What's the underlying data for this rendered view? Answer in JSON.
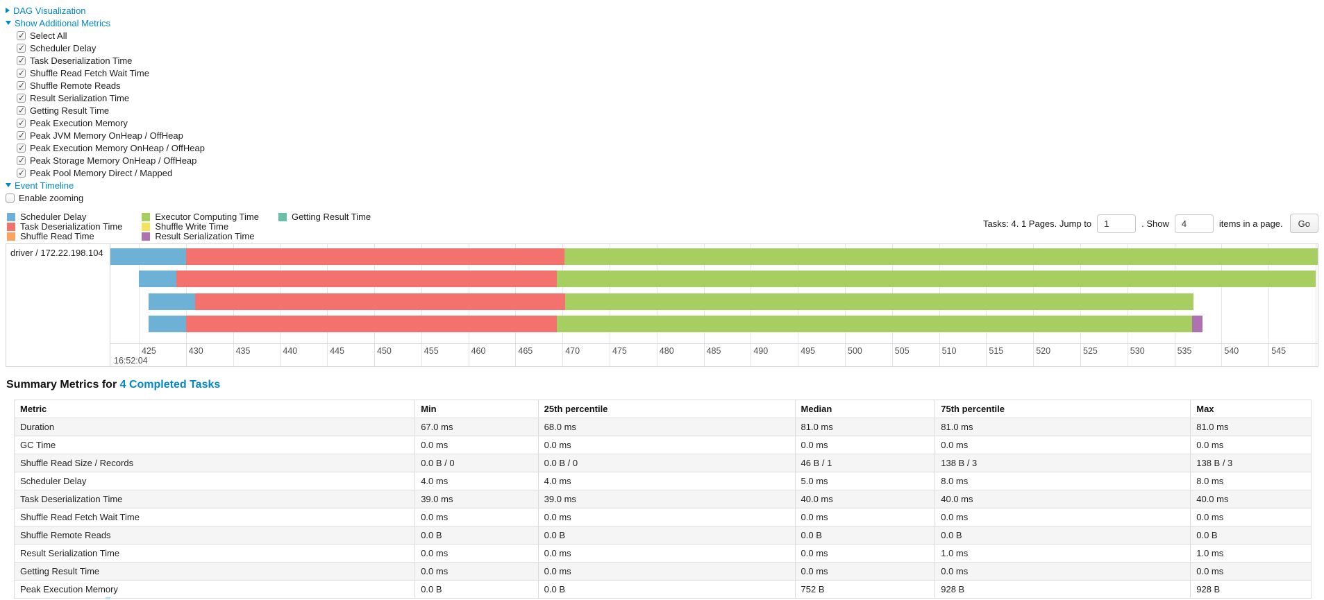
{
  "controls": {
    "dag": {
      "label": "DAG Visualization"
    },
    "metrics_toggle": {
      "label": "Show Additional Metrics"
    },
    "metric_checkboxes": [
      {
        "label": "Select All",
        "checked": true
      },
      {
        "label": "Scheduler Delay",
        "checked": true
      },
      {
        "label": "Task Deserialization Time",
        "checked": true
      },
      {
        "label": "Shuffle Read Fetch Wait Time",
        "checked": true
      },
      {
        "label": "Shuffle Remote Reads",
        "checked": true
      },
      {
        "label": "Result Serialization Time",
        "checked": true
      },
      {
        "label": "Getting Result Time",
        "checked": true
      },
      {
        "label": "Peak Execution Memory",
        "checked": true
      },
      {
        "label": "Peak JVM Memory OnHeap / OffHeap",
        "checked": true
      },
      {
        "label": "Peak Execution Memory OnHeap / OffHeap",
        "checked": true
      },
      {
        "label": "Peak Storage Memory OnHeap / OffHeap",
        "checked": true
      },
      {
        "label": "Peak Pool Memory Direct / Mapped",
        "checked": true
      }
    ],
    "event_timeline": {
      "label": "Event Timeline"
    },
    "enable_zooming": {
      "label": "Enable zooming",
      "checked": false
    }
  },
  "legend": {
    "columns": [
      [
        {
          "name": "Scheduler Delay",
          "color": "#6EB1D6"
        },
        {
          "name": "Task Deserialization Time",
          "color": "#F4726E"
        },
        {
          "name": "Shuffle Read Time",
          "color": "#FBA45D"
        }
      ],
      [
        {
          "name": "Executor Computing Time",
          "color": "#A6CE61"
        },
        {
          "name": "Shuffle Write Time",
          "color": "#F2E45C"
        },
        {
          "name": "Result Serialization Time",
          "color": "#AF72B0"
        }
      ],
      [
        {
          "name": "Getting Result Time",
          "color": "#66C2A5"
        }
      ]
    ]
  },
  "pagination": {
    "summary": "Tasks: 4. 1 Pages. Jump to",
    "jump_value": "1",
    "show_label": ". Show",
    "show_value": "4",
    "items_label": "items in a page.",
    "go_label": "Go"
  },
  "chart_data": {
    "type": "timeline-gantt",
    "group_label": "driver / 172.22.198.104",
    "x_axis": {
      "unit": "ms",
      "base_time": "16:52:04",
      "tick_start": 425,
      "tick_end": 550,
      "tick_step": 5
    },
    "colors": {
      "Scheduler Delay": "#6EB1D6",
      "Task Deserialization Time": "#F4726E",
      "Shuffle Read Time": "#FBA45D",
      "Executor Computing Time": "#A6CE61",
      "Shuffle Write Time": "#F2E45C",
      "Result Serialization Time": "#AF72B0",
      "Getting Result Time": "#66C2A5"
    },
    "rows": [
      {
        "segments": [
          {
            "name": "Scheduler Delay",
            "start": 422.0,
            "end": 430.0
          },
          {
            "name": "Task Deserialization Time",
            "start": 430.0,
            "end": 470.2
          },
          {
            "name": "Executor Computing Time",
            "start": 470.2,
            "end": 550.8
          }
        ]
      },
      {
        "segments": [
          {
            "name": "Scheduler Delay",
            "start": 425.0,
            "end": 429.0
          },
          {
            "name": "Task Deserialization Time",
            "start": 429.0,
            "end": 469.4
          },
          {
            "name": "Executor Computing Time",
            "start": 469.4,
            "end": 550.0
          }
        ]
      },
      {
        "segments": [
          {
            "name": "Scheduler Delay",
            "start": 426.0,
            "end": 431.0
          },
          {
            "name": "Task Deserialization Time",
            "start": 431.0,
            "end": 470.3
          },
          {
            "name": "Executor Computing Time",
            "start": 470.3,
            "end": 537.0
          }
        ]
      },
      {
        "segments": [
          {
            "name": "Scheduler Delay",
            "start": 426.0,
            "end": 430.0
          },
          {
            "name": "Task Deserialization Time",
            "start": 430.0,
            "end": 469.4
          },
          {
            "name": "Executor Computing Time",
            "start": 469.4,
            "end": 536.9
          },
          {
            "name": "Result Serialization Time",
            "start": 536.9,
            "end": 538.0
          }
        ]
      }
    ]
  },
  "summary": {
    "title": "Summary Metrics for",
    "link": "4 Completed Tasks",
    "headers": [
      "Metric",
      "Min",
      "25th percentile",
      "Median",
      "75th percentile",
      "Max"
    ],
    "rows": [
      {
        "metric": "Duration",
        "values": [
          "67.0 ms",
          "68.0 ms",
          "81.0 ms",
          "81.0 ms",
          "81.0 ms"
        ]
      },
      {
        "metric": "GC Time",
        "values": [
          "0.0 ms",
          "0.0 ms",
          "0.0 ms",
          "0.0 ms",
          "0.0 ms"
        ]
      },
      {
        "metric": "Shuffle Read Size / Records",
        "values": [
          "0.0 B / 0",
          "0.0 B / 0",
          "46 B / 1",
          "138 B / 3",
          "138 B / 3"
        ]
      },
      {
        "metric": "Scheduler Delay",
        "values": [
          "4.0 ms",
          "4.0 ms",
          "5.0 ms",
          "8.0 ms",
          "8.0 ms"
        ]
      },
      {
        "metric": "Task Deserialization Time",
        "values": [
          "39.0 ms",
          "39.0 ms",
          "40.0 ms",
          "40.0 ms",
          "40.0 ms"
        ]
      },
      {
        "metric": "Shuffle Read Fetch Wait Time",
        "values": [
          "0.0 ms",
          "0.0 ms",
          "0.0 ms",
          "0.0 ms",
          "0.0 ms"
        ]
      },
      {
        "metric": "Shuffle Remote Reads",
        "values": [
          "0.0 B",
          "0.0 B",
          "0.0 B",
          "0.0 B",
          "0.0 B"
        ]
      },
      {
        "metric": "Result Serialization Time",
        "values": [
          "0.0 ms",
          "0.0 ms",
          "0.0 ms",
          "1.0 ms",
          "1.0 ms"
        ]
      },
      {
        "metric": "Getting Result Time",
        "values": [
          "0.0 ms",
          "0.0 ms",
          "0.0 ms",
          "0.0 ms",
          "0.0 ms"
        ]
      },
      {
        "metric": "Peak Execution Memory",
        "values": [
          "0.0 B",
          "0.0 B",
          "752 B",
          "928 B",
          "928 B"
        ]
      }
    ]
  }
}
